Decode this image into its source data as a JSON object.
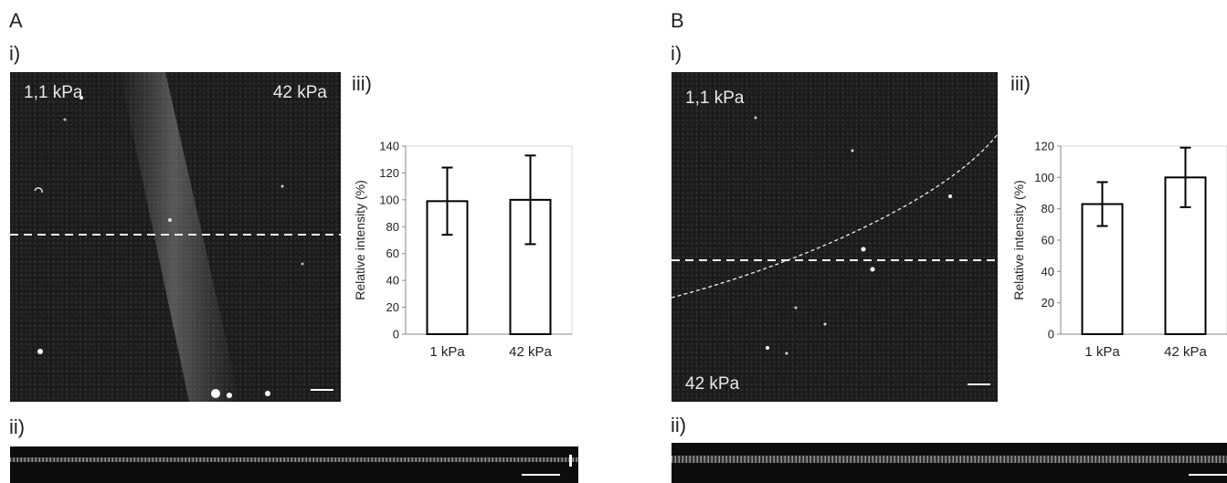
{
  "panels": [
    {
      "letter": "A",
      "sub_i": "i)",
      "sub_ii": "ii)",
      "sub_iii": "iii)",
      "image_label_left": "1,1 kPa",
      "image_label_right": "42 kPa"
    },
    {
      "letter": "B",
      "sub_i": "i)",
      "sub_ii": "ii)",
      "sub_iii": "iii)",
      "image_label_top": "1,1 kPa",
      "image_label_bottom": "42 kPa"
    }
  ],
  "chart_data": [
    {
      "type": "bar",
      "categories": [
        "1 kPa",
        "42 kPa"
      ],
      "values": [
        99,
        100
      ],
      "error": [
        25,
        33
      ],
      "xlabel": "",
      "ylabel": "Relative intensity (%)",
      "ylim": [
        0,
        140
      ],
      "yticks": [
        0,
        20,
        40,
        60,
        80,
        100,
        120,
        140
      ],
      "grid": false
    },
    {
      "type": "bar",
      "categories": [
        "1 kPa",
        "42 kPa"
      ],
      "values": [
        83,
        100
      ],
      "error": [
        14,
        19
      ],
      "xlabel": "",
      "ylabel": "Relative intensity (%)",
      "ylim": [
        0,
        120
      ],
      "yticks": [
        0,
        20,
        40,
        60,
        80,
        100,
        120
      ],
      "grid": false
    }
  ]
}
